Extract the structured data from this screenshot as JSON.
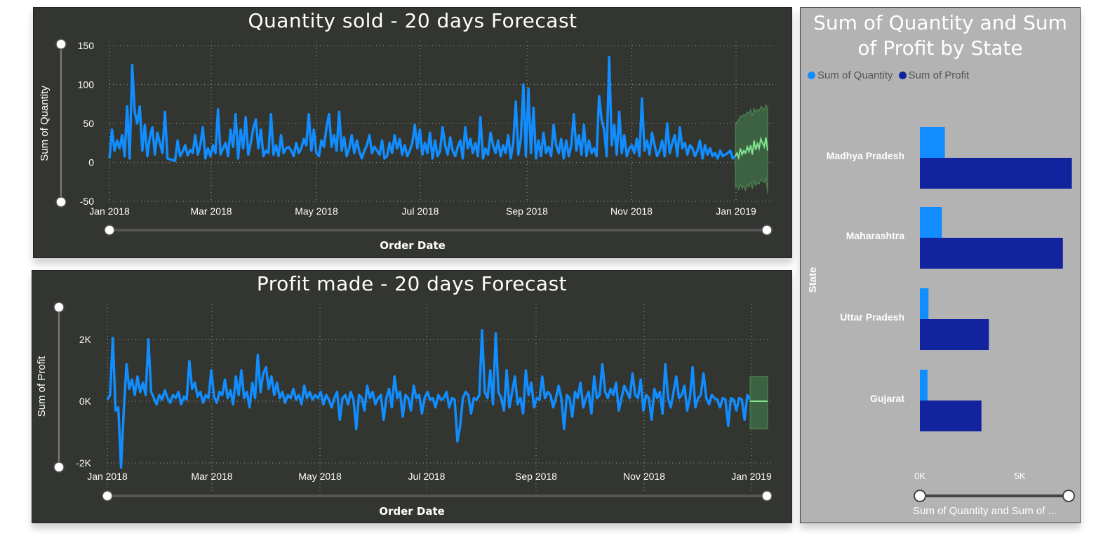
{
  "chart_data": [
    {
      "type": "line",
      "title": "Quantity sold - 20 days Forecast",
      "xlabel": "Order Date",
      "ylabel": "Sum of Quantity",
      "ylim": [
        -50,
        150
      ],
      "yticks": [
        "150",
        "100",
        "50",
        "0",
        "-50"
      ],
      "ytick_values": [
        150,
        100,
        50,
        0,
        -50
      ],
      "xticks": [
        "Jan 2018",
        "Mar 2018",
        "May 2018",
        "Jul 2018",
        "Sep 2018",
        "Nov 2018",
        "Jan 2019"
      ],
      "grid": true,
      "colors": {
        "series": "#118dff",
        "forecast": "#7fe58e",
        "band": "#3f6a45"
      },
      "series": [
        {
          "values": [
            5,
            42,
            15,
            28,
            18,
            35,
            8,
            72,
            5,
            125,
            65,
            50,
            72,
            15,
            48,
            8,
            32,
            45,
            10,
            38,
            25,
            12,
            65,
            5,
            4,
            3,
            2,
            28,
            8,
            14,
            22,
            9,
            16,
            12,
            35,
            10,
            22,
            45,
            5,
            18,
            8,
            22,
            12,
            68,
            10,
            18,
            25,
            8,
            42,
            20,
            62,
            5,
            42,
            18,
            58,
            10,
            25,
            44,
            55,
            18,
            42,
            8,
            15,
            12,
            62,
            10,
            22,
            8,
            35,
            12,
            18,
            20,
            15,
            8,
            25,
            12,
            18,
            30,
            22,
            62,
            15,
            42,
            12,
            8,
            28,
            20,
            45,
            62,
            20,
            35,
            15,
            65,
            15,
            32,
            8,
            18,
            35,
            12,
            28,
            14,
            5,
            15,
            22,
            35,
            12,
            20,
            15,
            10,
            28,
            5,
            8,
            25,
            12,
            35,
            18,
            30,
            10,
            22,
            8,
            15,
            25,
            48,
            18,
            42,
            10,
            25,
            12,
            38,
            5,
            28,
            8,
            15,
            45,
            22,
            10,
            32,
            15,
            8,
            20,
            28,
            5,
            45,
            18,
            30,
            12,
            25,
            8,
            58,
            5,
            18,
            10,
            38,
            22,
            12,
            28,
            8,
            22,
            12,
            35,
            5,
            25,
            78,
            10,
            30,
            100,
            8,
            95,
            12,
            70,
            5,
            28,
            8,
            38,
            12,
            20,
            8,
            48,
            22,
            12,
            30,
            5,
            28,
            8,
            22,
            62,
            15,
            35,
            10,
            48,
            8,
            28,
            12,
            18,
            8,
            85,
            55,
            42,
            8,
            135,
            22,
            48,
            10,
            65,
            12,
            35,
            8,
            18,
            22,
            12,
            30,
            8,
            82,
            15,
            28,
            10,
            38,
            22,
            8,
            15,
            28,
            8,
            50,
            12,
            25,
            35,
            8,
            45,
            18,
            25,
            10,
            22,
            18,
            8,
            15,
            28,
            5,
            22,
            10,
            18,
            8,
            12,
            5,
            15,
            8,
            10,
            12,
            15,
            5,
            8
          ]
        },
        {
          "name": "Forecast",
          "values": [
            8,
            12,
            6,
            18,
            10,
            15,
            12,
            20,
            14,
            22,
            10,
            28,
            16,
            24,
            18,
            30,
            25,
            20,
            32,
            15
          ],
          "upper": [
            48,
            52,
            55,
            60,
            58,
            62,
            60,
            65,
            62,
            68,
            60,
            70,
            65,
            68,
            66,
            72,
            70,
            68,
            74,
            70
          ],
          "lower": [
            -32,
            -30,
            -35,
            -28,
            -34,
            -30,
            -36,
            -28,
            -32,
            -26,
            -34,
            -24,
            -30,
            -26,
            -28,
            -22,
            -24,
            -26,
            -20,
            -40
          ]
        }
      ]
    },
    {
      "type": "line",
      "title": "Profit made - 20 days Forecast",
      "xlabel": "Order Date",
      "ylabel": "Sum of Profit",
      "ylim": [
        -3000,
        3000
      ],
      "yticks": [
        "2K",
        "0K",
        "-2K"
      ],
      "ytick_values": [
        2000,
        0,
        -2000
      ],
      "xticks": [
        "Jan 2018",
        "Mar 2018",
        "May 2018",
        "Jul 2018",
        "Sep 2018",
        "Nov 2018",
        "Jan 2019"
      ],
      "grid": true,
      "colors": {
        "series": "#118dff",
        "forecast": "#7fe58e",
        "band": "#3f6a45"
      },
      "series": [
        {
          "values": [
            50,
            200,
            2050,
            -300,
            -200,
            -2150,
            -300,
            1200,
            400,
            700,
            200,
            800,
            300,
            600,
            200,
            2000,
            300,
            100,
            -100,
            200,
            50,
            350,
            100,
            -50,
            200,
            100,
            300,
            -100,
            150,
            50,
            1300,
            400,
            600,
            150,
            300,
            -50,
            200,
            100,
            1000,
            150,
            -50,
            300,
            200,
            700,
            100,
            350,
            -100,
            800,
            200,
            1000,
            100,
            300,
            -200,
            600,
            100,
            1500,
            300,
            900,
            1100,
            400,
            800,
            200,
            600,
            100,
            300,
            -50,
            200,
            100,
            400,
            50,
            200,
            -100,
            500,
            100,
            300,
            50,
            200,
            100,
            300,
            -100,
            200,
            50,
            -200,
            100,
            300,
            -600,
            100,
            200,
            -100,
            300,
            50,
            -900,
            200,
            100,
            -300,
            500,
            100,
            300,
            -100,
            100,
            200,
            -600,
            100,
            400,
            -200,
            800,
            100,
            300,
            -500,
            200,
            100,
            -300,
            500,
            100,
            200,
            -400,
            100,
            300,
            50,
            100,
            -200,
            200,
            50,
            100,
            300,
            -200,
            100,
            50,
            -1300,
            -800,
            100,
            300,
            200,
            -400,
            100,
            50,
            200,
            2300,
            300,
            100,
            1000,
            -100,
            2200,
            300,
            100,
            -300,
            1000,
            -200,
            300,
            800,
            -100,
            100,
            -400,
            1000,
            200,
            600,
            -200,
            100,
            50,
            800,
            100,
            300,
            200,
            -200,
            100,
            500,
            100,
            -900,
            200,
            100,
            -500,
            300,
            100,
            600,
            -200,
            100,
            300,
            -400,
            800,
            100,
            200,
            1200,
            300,
            100,
            400,
            200,
            600,
            -300,
            100,
            500,
            300,
            100,
            900,
            200,
            100,
            700,
            -300,
            200,
            100,
            -600,
            400,
            100,
            300,
            -400,
            1200,
            100,
            -200,
            300,
            800,
            100,
            200,
            500,
            -300,
            100,
            1100,
            -200,
            100,
            200,
            900,
            100,
            -100,
            200,
            100,
            50,
            -200,
            100,
            50,
            -800,
            100,
            50,
            -300,
            100,
            50,
            -600,
            200,
            50
          ],
          "rounded_note": ""
        },
        {
          "name": "Forecast",
          "values": [
            0,
            0,
            0,
            0,
            0,
            0,
            0,
            0,
            0,
            0,
            0,
            0,
            0,
            0,
            0,
            0,
            0,
            0,
            0,
            0
          ],
          "upper": [
            800,
            800,
            800,
            800,
            800,
            800,
            800,
            800,
            800,
            800,
            800,
            800,
            800,
            800,
            800,
            800,
            800,
            800,
            800,
            800
          ],
          "lower": [
            -900,
            -900,
            -900,
            -900,
            -900,
            -900,
            -900,
            -900,
            -900,
            -900,
            -900,
            -900,
            -900,
            -900,
            -900,
            -900,
            -900,
            -900,
            -900,
            -900
          ]
        }
      ]
    },
    {
      "type": "bar",
      "orientation": "horizontal",
      "title": "Sum of Quantity and Sum of Profit by State",
      "ylabel": "State",
      "xlabel": "Sum of Quantity and Sum of ...",
      "categories": [
        "Madhya Pradesh",
        "Maharashtra",
        "Uttar Pradesh",
        "Gujarat"
      ],
      "series": [
        {
          "name": "Sum of Quantity",
          "values": [
            1250,
            1100,
            430,
            380
          ],
          "color": "#118dff"
        },
        {
          "name": "Sum of Profit",
          "values": [
            7600,
            7150,
            3450,
            3080
          ],
          "color": "#12239e"
        }
      ],
      "xlim": [
        0,
        8000
      ],
      "xticks": [
        "0K",
        "5K"
      ],
      "xtick_values": [
        0,
        5000
      ],
      "legend_position": "top-left"
    }
  ]
}
